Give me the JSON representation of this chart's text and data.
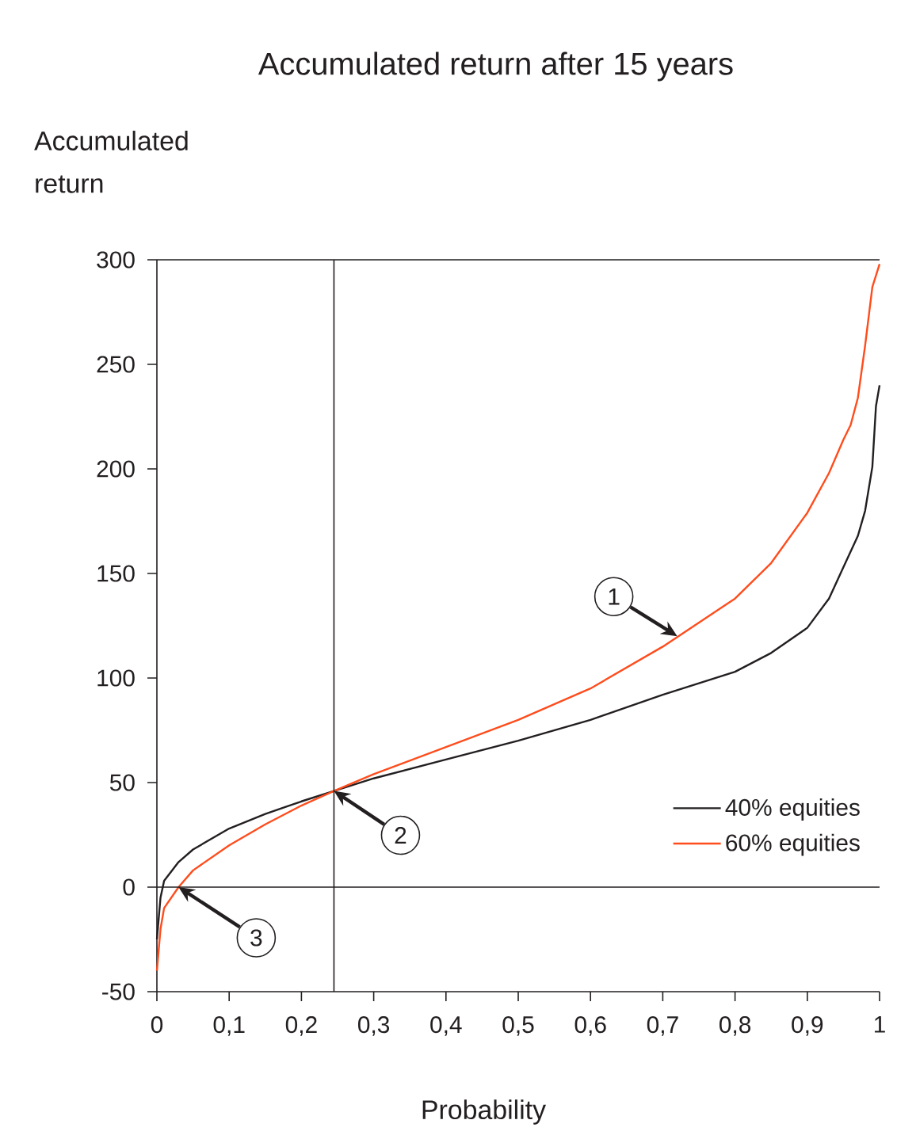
{
  "chart_data": {
    "type": "line",
    "title": "Accumulated return after 15 years",
    "xlabel": "Probability",
    "ylabel": "Accumulated return",
    "xlim": [
      0,
      1
    ],
    "ylim": [
      -50,
      300
    ],
    "xticks": [
      0,
      {
        "value": 0.1,
        "label": "0,1"
      },
      {
        "value": 0.2,
        "label": "0,2"
      },
      {
        "value": 0.3,
        "label": "0,3"
      },
      {
        "value": 0.4,
        "label": "0,4"
      },
      {
        "value": 0.5,
        "label": "0,5"
      },
      {
        "value": 0.6,
        "label": "0,6"
      },
      {
        "value": 0.7,
        "label": "0,7"
      },
      {
        "value": 0.8,
        "label": "0,8"
      },
      {
        "value": 0.9,
        "label": "0,9"
      },
      1
    ],
    "yticks": [
      -50,
      0,
      50,
      100,
      150,
      200,
      250,
      300
    ],
    "series": [
      {
        "name": "40% equities",
        "color": "#231f20",
        "x": [
          0,
          0.005,
          0.01,
          0.03,
          0.05,
          0.1,
          0.15,
          0.2,
          0.245,
          0.3,
          0.4,
          0.5,
          0.6,
          0.7,
          0.8,
          0.85,
          0.9,
          0.93,
          0.95,
          0.97,
          0.98,
          0.99,
          0.995,
          1
        ],
        "values": [
          -25,
          -5,
          3,
          12,
          18,
          28,
          35,
          41,
          46,
          52,
          61,
          70,
          80,
          92,
          103,
          112,
          124,
          138,
          153,
          168,
          180,
          201,
          230,
          240
        ]
      },
      {
        "name": "60% equities",
        "color": "#ff4c1c",
        "x": [
          0,
          0.005,
          0.01,
          0.03,
          0.05,
          0.1,
          0.15,
          0.2,
          0.245,
          0.3,
          0.4,
          0.5,
          0.6,
          0.7,
          0.8,
          0.85,
          0.9,
          0.93,
          0.95,
          0.96,
          0.97,
          0.98,
          0.99,
          1
        ],
        "values": [
          -40,
          -20,
          -10,
          0,
          8,
          20,
          30,
          39,
          46,
          54,
          67,
          80,
          95,
          115,
          138,
          155,
          179,
          198,
          214,
          221,
          234,
          259,
          287,
          298
        ]
      }
    ],
    "ref_lines": [
      {
        "axis": "y",
        "value": 0,
        "color": "#231f20"
      },
      {
        "axis": "x",
        "value": 0.245,
        "color": "#231f20"
      }
    ],
    "annotations": [
      {
        "text": "1",
        "x": 0.72,
        "y": 120
      },
      {
        "text": "2",
        "x": 0.245,
        "y": 46
      },
      {
        "text": "3",
        "x": 0.03,
        "y": 0
      }
    ],
    "legend": "bottom right",
    "grid": false
  }
}
